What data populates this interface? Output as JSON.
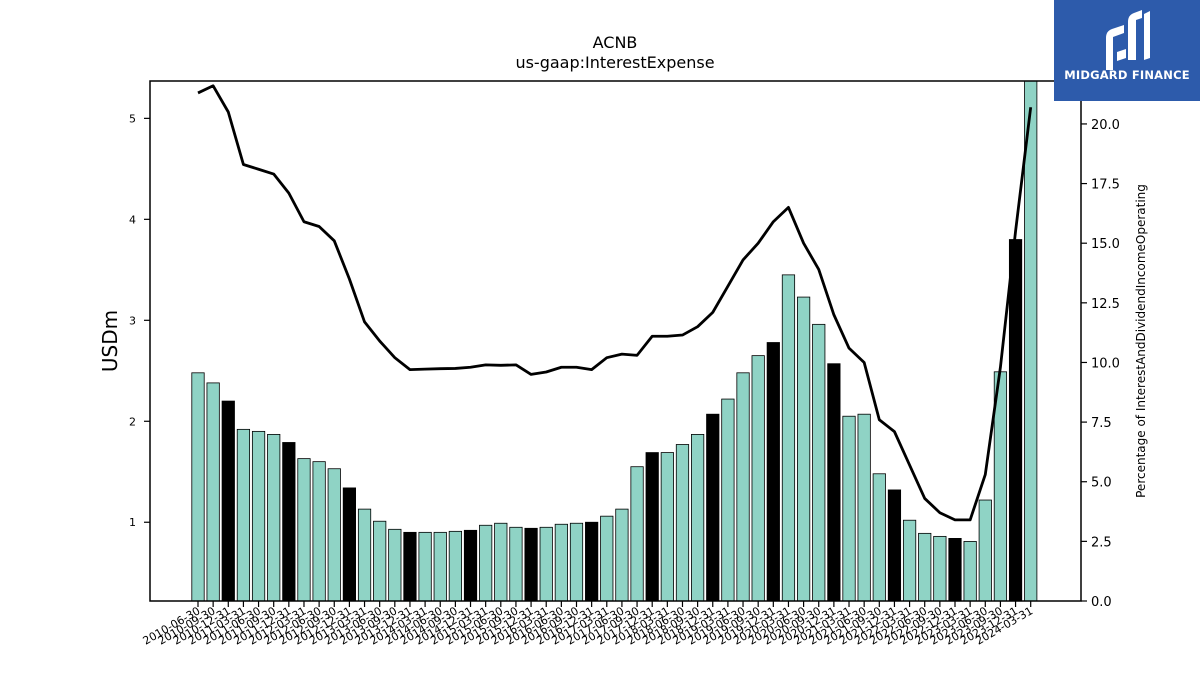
{
  "chart_data": {
    "type": "bar",
    "title": "ACNB",
    "subtitle": "us-gaap:InterestExpense",
    "ylabel": "USDm",
    "y2label": "Percentage of InterestAndDividendIncomeOperating",
    "ylim": [
      0.22,
      5.37
    ],
    "y2lim": [
      0.0,
      21.8
    ],
    "yticks": [
      "1",
      "2",
      "3",
      "4",
      "5"
    ],
    "y2ticks": [
      "0.0",
      "2.5",
      "5.0",
      "7.5",
      "10.0",
      "12.5",
      "15.0",
      "17.5",
      "20.0"
    ],
    "bar_color": "#8fd3c5",
    "highlight_color": "#000000",
    "line_color": "#000000",
    "grid": false,
    "categories": [
      "2010-06-30",
      "2010-09-30",
      "2010-12-31",
      "2011-03-31",
      "2011-06-30",
      "2011-09-30",
      "2011-12-31",
      "2012-03-31",
      "2012-06-30",
      "2012-09-30",
      "2012-12-31",
      "2013-03-31",
      "2013-06-30",
      "2013-09-30",
      "2013-12-31",
      "2014-03-31",
      "2014-06-30",
      "2014-09-30",
      "2014-12-31",
      "2015-03-31",
      "2015-06-30",
      "2015-09-30",
      "2015-12-31",
      "2016-03-31",
      "2016-06-30",
      "2016-09-30",
      "2016-12-31",
      "2017-03-31",
      "2017-06-30",
      "2017-09-30",
      "2017-12-31",
      "2018-03-31",
      "2018-06-30",
      "2018-09-30",
      "2018-12-31",
      "2019-03-31",
      "2019-06-30",
      "2019-09-30",
      "2019-12-31",
      "2020-03-31",
      "2020-06-30",
      "2020-09-30",
      "2020-12-31",
      "2021-03-31",
      "2021-06-30",
      "2021-09-30",
      "2021-12-31",
      "2022-03-31",
      "2022-06-30",
      "2022-09-30",
      "2022-12-31",
      "2023-03-31",
      "2023-06-30",
      "2023-09-30",
      "2023-12-31",
      "2024-03-31"
    ],
    "highlight": [
      false,
      false,
      true,
      false,
      false,
      false,
      true,
      false,
      false,
      false,
      true,
      false,
      false,
      false,
      true,
      false,
      false,
      false,
      true,
      false,
      false,
      false,
      true,
      false,
      false,
      false,
      true,
      false,
      false,
      false,
      true,
      false,
      false,
      false,
      true,
      false,
      false,
      false,
      true,
      false,
      false,
      false,
      true,
      false,
      false,
      false,
      true,
      false,
      false,
      false,
      true,
      false,
      false,
      false,
      true,
      false
    ],
    "values": [
      2.48,
      2.38,
      2.2,
      1.92,
      1.9,
      1.87,
      1.79,
      1.63,
      1.6,
      1.53,
      1.34,
      1.13,
      1.01,
      0.93,
      0.9,
      0.9,
      0.9,
      0.91,
      0.92,
      0.97,
      0.99,
      0.95,
      0.94,
      0.95,
      0.98,
      0.99,
      1.0,
      1.06,
      1.13,
      1.55,
      1.69,
      1.69,
      1.77,
      1.87,
      2.07,
      2.22,
      2.48,
      2.65,
      2.78,
      3.45,
      3.23,
      2.96,
      2.57,
      2.05,
      2.07,
      1.48,
      1.32,
      1.02,
      0.89,
      0.86,
      0.84,
      0.81,
      1.22,
      2.49,
      3.8,
      5.37
    ],
    "line_values": [
      21.3,
      21.6,
      20.5,
      18.3,
      18.1,
      17.9,
      17.1,
      15.9,
      15.7,
      15.1,
      13.5,
      11.7,
      10.9,
      10.2,
      9.7,
      9.72,
      9.74,
      9.75,
      9.8,
      9.9,
      9.88,
      9.9,
      9.5,
      9.6,
      9.8,
      9.8,
      9.7,
      10.2,
      10.35,
      10.3,
      11.1,
      11.1,
      11.15,
      11.5,
      12.1,
      13.2,
      14.3,
      15.0,
      15.9,
      16.5,
      15.0,
      13.9,
      12.0,
      10.6,
      10.0,
      7.6,
      7.1,
      5.7,
      4.3,
      3.7,
      3.4,
      3.4,
      5.3,
      9.8,
      15.5,
      20.7
    ]
  },
  "logo": {
    "text": "MIDGARD FINANCE"
  }
}
